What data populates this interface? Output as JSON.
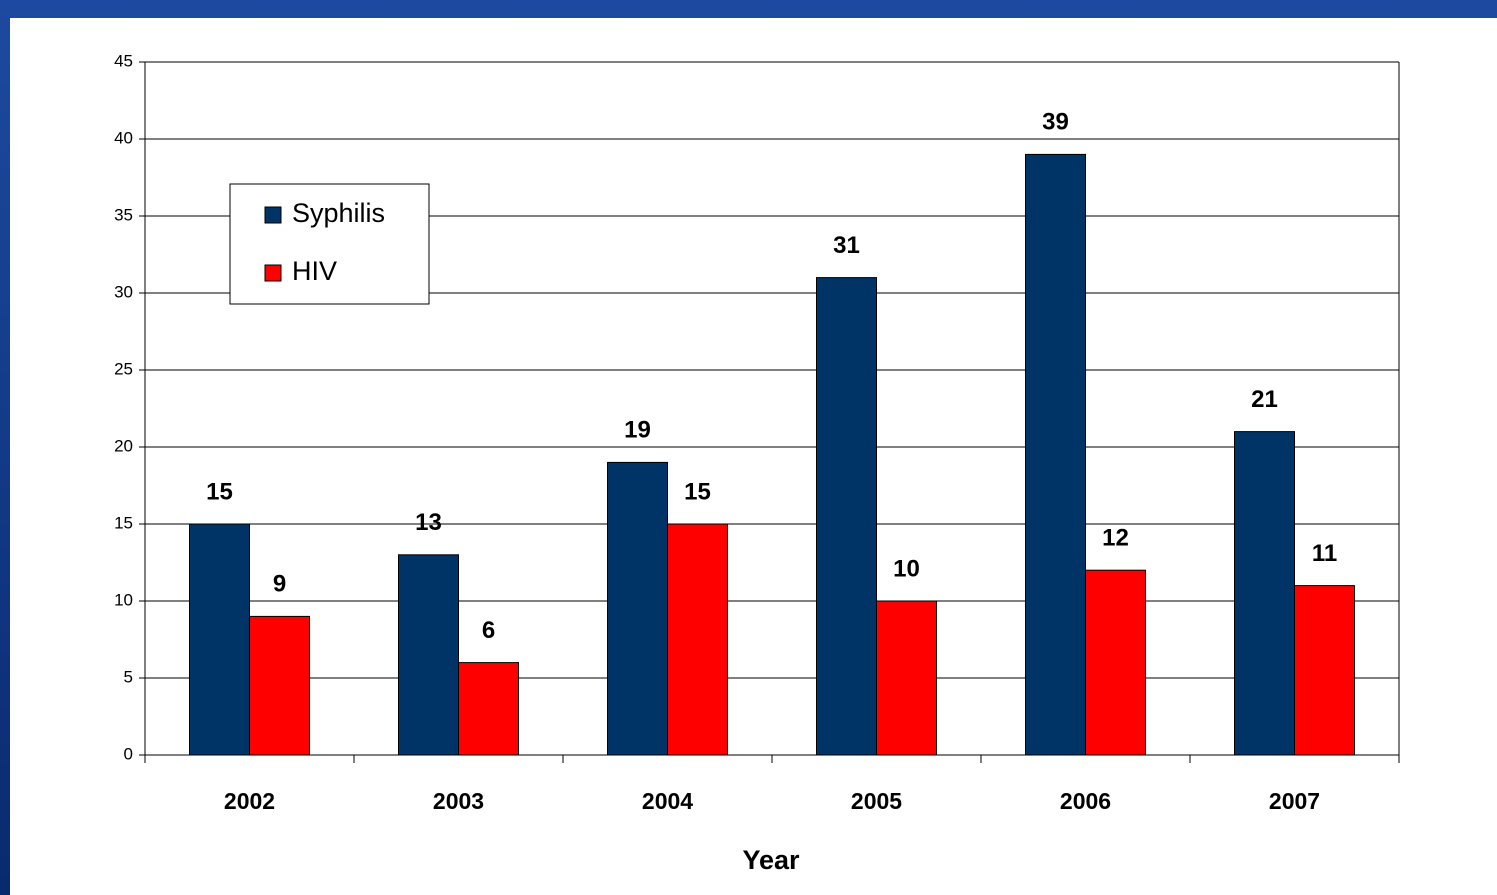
{
  "chart_data": {
    "type": "bar",
    "x_label": "Year",
    "categories": [
      "2002",
      "2003",
      "2004",
      "2005",
      "2006",
      "2007"
    ],
    "series": [
      {
        "name": "Syphilis",
        "color": "#003366",
        "values": [
          15,
          13,
          19,
          31,
          39,
          21
        ]
      },
      {
        "name": "HIV",
        "color": "#ff0000",
        "values": [
          9,
          6,
          15,
          10,
          12,
          11
        ]
      }
    ],
    "ylim": [
      0,
      45
    ],
    "yticks": [
      0,
      5,
      10,
      15,
      20,
      25,
      30,
      35,
      40,
      45
    ],
    "grid": true,
    "legend": "upper left"
  }
}
